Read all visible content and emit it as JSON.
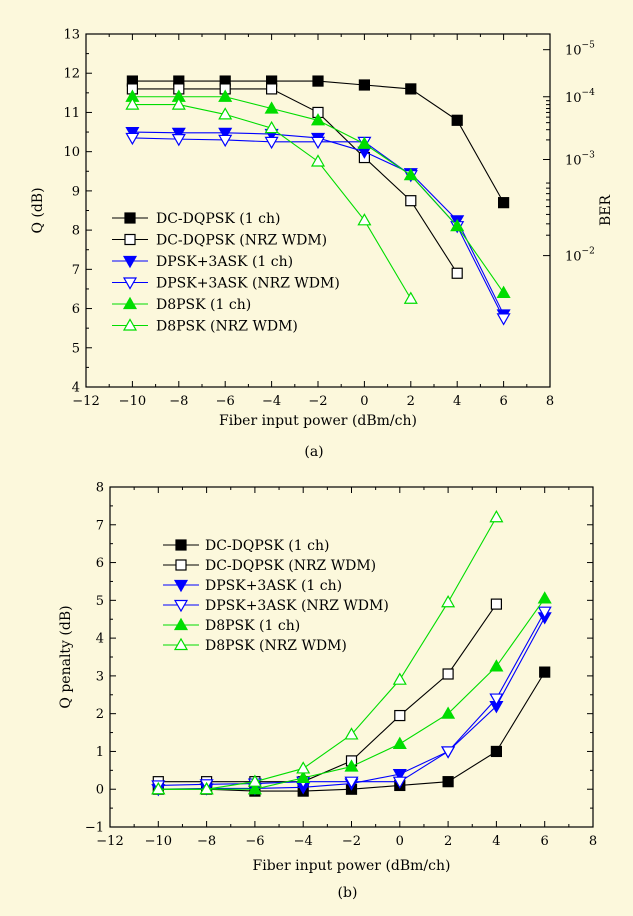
{
  "chart_data": [
    {
      "type": "line",
      "caption": "(a)",
      "xlabel": "Fiber input power (dBm/ch)",
      "ylabel": "Q (dB)",
      "y2label": "BER",
      "xlim": [
        -12,
        8
      ],
      "ylim": [
        4,
        13
      ],
      "xticks": [
        -12,
        -10,
        -8,
        -6,
        -4,
        -2,
        0,
        2,
        4,
        6,
        8
      ],
      "yticks": [
        4,
        5,
        6,
        7,
        8,
        9,
        10,
        11,
        12,
        13
      ],
      "y2ticks": [
        {
          "q": 7.35,
          "base": "10",
          "exp": "−2"
        },
        {
          "q": 9.8,
          "base": "10",
          "exp": "−3"
        },
        {
          "q": 11.4,
          "base": "10",
          "exp": "−4"
        },
        {
          "q": 12.6,
          "base": "10",
          "exp": "−5"
        }
      ],
      "y2minor": [
        7.87,
        8.16,
        8.4,
        8.6,
        8.77,
        8.93,
        9.07,
        9.2,
        10.3,
        10.56,
        10.74,
        10.88,
        11.0,
        11.1,
        11.2,
        11.3
      ],
      "grid": false,
      "legend_position": "lower-left",
      "series": [
        {
          "name": "DC-DQPSK (1 ch)",
          "color": "#000000",
          "marker": "square",
          "filled": true,
          "x": [
            -10,
            -8,
            -6,
            -4,
            -2,
            0,
            2,
            4,
            6
          ],
          "y": [
            11.8,
            11.8,
            11.8,
            11.8,
            11.8,
            11.7,
            11.6,
            10.8,
            8.7
          ]
        },
        {
          "name": "DC-DQPSK (NRZ WDM)",
          "color": "#000000",
          "marker": "square",
          "filled": false,
          "x": [
            -10,
            -8,
            -6,
            -4,
            -2,
            0,
            2,
            4
          ],
          "y": [
            11.6,
            11.6,
            11.6,
            11.6,
            11.0,
            9.85,
            8.75,
            6.9
          ]
        },
        {
          "name": "DPSK+3ASK (1 ch)",
          "color": "#0000ff",
          "marker": "triangle-down",
          "filled": true,
          "x": [
            -10,
            -8,
            -6,
            -4,
            -2,
            0,
            2,
            4,
            6
          ],
          "y": [
            10.5,
            10.48,
            10.48,
            10.45,
            10.35,
            10.0,
            9.45,
            8.25,
            5.85
          ]
        },
        {
          "name": "DPSK+3ASK (NRZ WDM)",
          "color": "#0000ff",
          "marker": "triangle-down",
          "filled": false,
          "x": [
            -10,
            -8,
            -6,
            -4,
            -2,
            0,
            2,
            4,
            6
          ],
          "y": [
            10.35,
            10.32,
            10.3,
            10.25,
            10.25,
            10.25,
            9.4,
            8.1,
            5.75
          ]
        },
        {
          "name": "D8PSK (1 ch)",
          "color": "#00dd00",
          "marker": "triangle-up",
          "filled": true,
          "x": [
            -10,
            -8,
            -6,
            -4,
            -2,
            0,
            2,
            4,
            6
          ],
          "y": [
            11.4,
            11.4,
            11.4,
            11.1,
            10.8,
            10.2,
            9.4,
            8.1,
            6.4
          ]
        },
        {
          "name": "D8PSK (NRZ WDM)",
          "color": "#00dd00",
          "marker": "triangle-up",
          "filled": false,
          "x": [
            -10,
            -8,
            -6,
            -4,
            -2,
            0,
            2
          ],
          "y": [
            11.2,
            11.2,
            10.95,
            10.6,
            9.75,
            8.25,
            6.25
          ]
        }
      ]
    },
    {
      "type": "line",
      "caption": "(b)",
      "xlabel": "Fiber input power (dBm/ch)",
      "ylabel": "Q penalty (dB)",
      "xlim": [
        -12,
        8
      ],
      "ylim": [
        -1,
        8
      ],
      "xticks": [
        -12,
        -10,
        -8,
        -6,
        -4,
        -2,
        0,
        2,
        4,
        6,
        8
      ],
      "yticks": [
        -1,
        0,
        1,
        2,
        3,
        4,
        5,
        6,
        7,
        8
      ],
      "grid": false,
      "legend_position": "upper-left",
      "series": [
        {
          "name": "DC-DQPSK (1 ch)",
          "color": "#000000",
          "marker": "square",
          "filled": true,
          "x": [
            -10,
            -8,
            -6,
            -4,
            -2,
            0,
            2,
            4,
            6
          ],
          "y": [
            0.0,
            0.0,
            -0.05,
            -0.05,
            0.0,
            0.1,
            0.2,
            1.0,
            3.1
          ]
        },
        {
          "name": "DC-DQPSK (NRZ WDM)",
          "color": "#000000",
          "marker": "square",
          "filled": false,
          "x": [
            -10,
            -8,
            -6,
            -4,
            -2,
            0,
            2,
            4
          ],
          "y": [
            0.2,
            0.2,
            0.2,
            0.2,
            0.75,
            1.95,
            3.05,
            4.9
          ]
        },
        {
          "name": "DPSK+3ASK (1 ch)",
          "color": "#0000ff",
          "marker": "triangle-down",
          "filled": true,
          "x": [
            -10,
            -8,
            -6,
            -4,
            -2,
            0,
            2,
            4,
            6
          ],
          "y": [
            0.0,
            0.02,
            0.02,
            0.05,
            0.15,
            0.4,
            1.0,
            2.2,
            4.55
          ]
        },
        {
          "name": "DPSK+3ASK (NRZ WDM)",
          "color": "#0000ff",
          "marker": "triangle-down",
          "filled": false,
          "x": [
            -10,
            -8,
            -6,
            -4,
            -2,
            0,
            2,
            4,
            6
          ],
          "y": [
            0.1,
            0.13,
            0.15,
            0.2,
            0.2,
            0.2,
            1.0,
            2.4,
            4.7
          ]
        },
        {
          "name": "D8PSK (1 ch)",
          "color": "#00dd00",
          "marker": "triangle-up",
          "filled": true,
          "x": [
            -10,
            -8,
            -6,
            -4,
            -2,
            0,
            2,
            4,
            6
          ],
          "y": [
            0.0,
            0.0,
            0.0,
            0.3,
            0.6,
            1.2,
            2.0,
            3.25,
            5.05
          ]
        },
        {
          "name": "D8PSK (NRZ WDM)",
          "color": "#00dd00",
          "marker": "triangle-up",
          "filled": false,
          "x": [
            -10,
            -8,
            -6,
            -4,
            -2,
            0,
            2,
            4
          ],
          "y": [
            0.0,
            0.0,
            0.2,
            0.55,
            1.45,
            2.9,
            4.95,
            7.2
          ]
        }
      ]
    }
  ]
}
